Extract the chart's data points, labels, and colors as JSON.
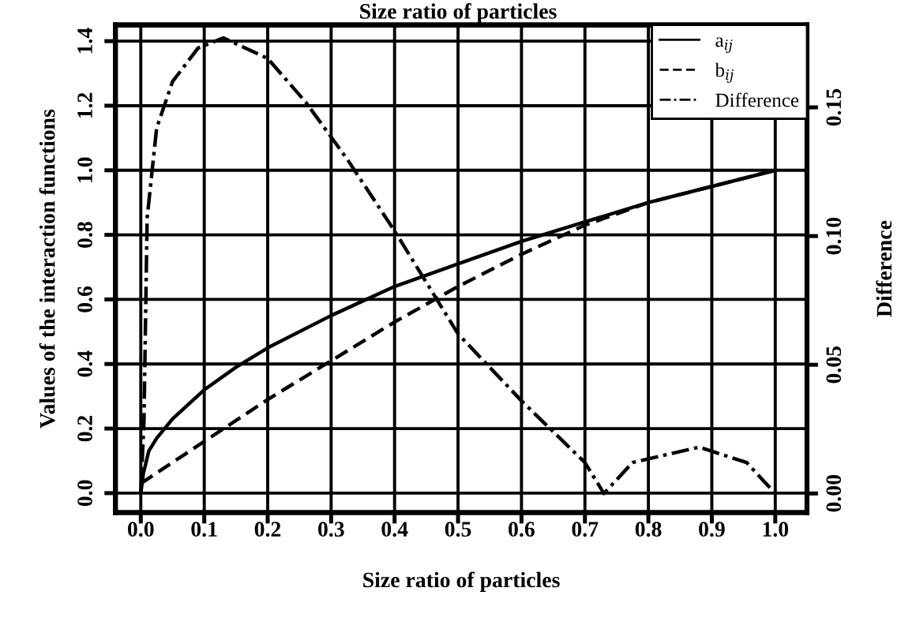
{
  "chart_data": {
    "type": "line",
    "title": "Size ratio of particles",
    "xlabel": "Size ratio of particles",
    "ylabel": "Values of the interaction functions",
    "y2label": "Difference",
    "series": [
      {
        "name": "a$_{ij}$",
        "color": "#000000",
        "line_style": "solid",
        "x": [
          0,
          0.004,
          0.0125,
          0.025,
          0.05,
          0.1,
          0.15,
          0.2,
          0.3,
          0.4,
          0.5,
          0.6,
          0.7,
          0.8,
          0.9,
          1.0
        ],
        "values": [
          0.0,
          0.06,
          0.13,
          0.17,
          0.23,
          0.32,
          0.39,
          0.45,
          0.55,
          0.64,
          0.71,
          0.78,
          0.84,
          0.9,
          0.95,
          1.0
        ]
      },
      {
        "name": "b$_{ij}$",
        "color": "#000000",
        "line_style": "dashed",
        "x": [
          0,
          0.1,
          0.2,
          0.3,
          0.4,
          0.5,
          0.6,
          0.7,
          0.8,
          0.9,
          1.0
        ],
        "values": [
          0.03,
          0.16,
          0.29,
          0.41,
          0.53,
          0.64,
          0.74,
          0.83,
          0.9,
          0.95,
          1.0
        ]
      },
      {
        "name": "Difference",
        "color": "#000000",
        "line_style": "dashdot",
        "axis": "y2",
        "x": [
          0,
          0.005,
          0.01,
          0.025,
          0.05,
          0.09,
          0.13,
          0.2,
          0.26,
          0.325,
          0.4,
          0.5,
          0.6,
          0.65,
          0.7,
          0.73,
          0.775,
          0.88,
          0.955,
          1.0
        ],
        "values": [
          0.0,
          0.028,
          0.107,
          0.142,
          0.16,
          0.173,
          0.177,
          0.169,
          0.152,
          0.13,
          0.102,
          0.062,
          0.036,
          0.024,
          0.012,
          0.0,
          0.012,
          0.018,
          0.012,
          0.0
        ]
      }
    ],
    "xlim": [
      -0.04,
      1.05
    ],
    "xticks": [
      {
        "value": 0,
        "label": "0.0"
      },
      0.1,
      0.2,
      0.3,
      0.4,
      0.5,
      0.6,
      0.7,
      0.8,
      0.9,
      {
        "value": 1,
        "label": "1.0"
      }
    ],
    "ylim": [
      -0.06,
      1.45
    ],
    "yticks": [
      {
        "value": 0,
        "label": "0.0"
      },
      0.2,
      0.4,
      0.6,
      0.8,
      {
        "value": 1,
        "label": "1.0"
      },
      1.2,
      1.4
    ],
    "y2lim": [
      -0.0074,
      0.182
    ],
    "y2ticks": [
      {
        "value": 0,
        "label": "0.00"
      },
      0.05,
      {
        "value": 0.1,
        "label": "0.10"
      },
      0.15
    ],
    "grid": true,
    "legend": "top right"
  }
}
